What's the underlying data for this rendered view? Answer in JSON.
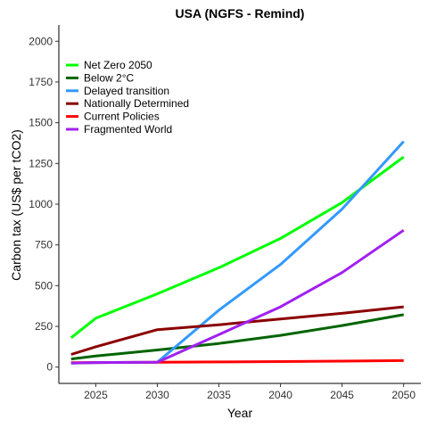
{
  "chart_data": {
    "type": "line",
    "title": "USA (NGFS - Remind)",
    "xlabel": "Year",
    "ylabel": "Carbon tax (US$ per tCO2)",
    "xlim": [
      2022.0,
      2051.4
    ],
    "ylim": [
      -100,
      2100
    ],
    "xticks": [
      2025,
      2030,
      2035,
      2040,
      2045,
      2050
    ],
    "yticks": [
      0,
      250,
      500,
      750,
      1000,
      1250,
      1500,
      1750,
      2000
    ],
    "grid": false,
    "legend_position": "top-left",
    "series": [
      {
        "name": "Net Zero 2050",
        "color": "#00ff00",
        "x": [
          2023,
          2025,
          2030,
          2035,
          2040,
          2045,
          2050
        ],
        "y": [
          180,
          300,
          450,
          610,
          790,
          1010,
          1290
        ]
      },
      {
        "name": "Below 2°C",
        "color": "#006400",
        "x": [
          2023,
          2025,
          2030,
          2035,
          2040,
          2045,
          2050
        ],
        "y": [
          50,
          68,
          105,
          145,
          195,
          255,
          322
        ]
      },
      {
        "name": "Delayed transition",
        "color": "#3399ff",
        "x": [
          2023,
          2025,
          2030,
          2035,
          2040,
          2045,
          2050
        ],
        "y": [
          25,
          28,
          30,
          350,
          630,
          970,
          1385
        ]
      },
      {
        "name": "Nationally Determined",
        "color": "#8b0000",
        "x": [
          2023,
          2025,
          2030,
          2035,
          2040,
          2045,
          2050
        ],
        "y": [
          78,
          125,
          230,
          260,
          295,
          330,
          370
        ]
      },
      {
        "name": "Current Policies",
        "color": "#ff0000",
        "x": [
          2023,
          2025,
          2030,
          2035,
          2040,
          2045,
          2050
        ],
        "y": [
          27,
          28,
          30,
          32,
          34,
          37,
          40
        ]
      },
      {
        "name": "Fragmented World",
        "color": "#a020f0",
        "x": [
          2023,
          2025,
          2030,
          2035,
          2040,
          2045,
          2050
        ],
        "y": [
          25,
          28,
          30,
          200,
          370,
          580,
          840
        ]
      }
    ]
  }
}
